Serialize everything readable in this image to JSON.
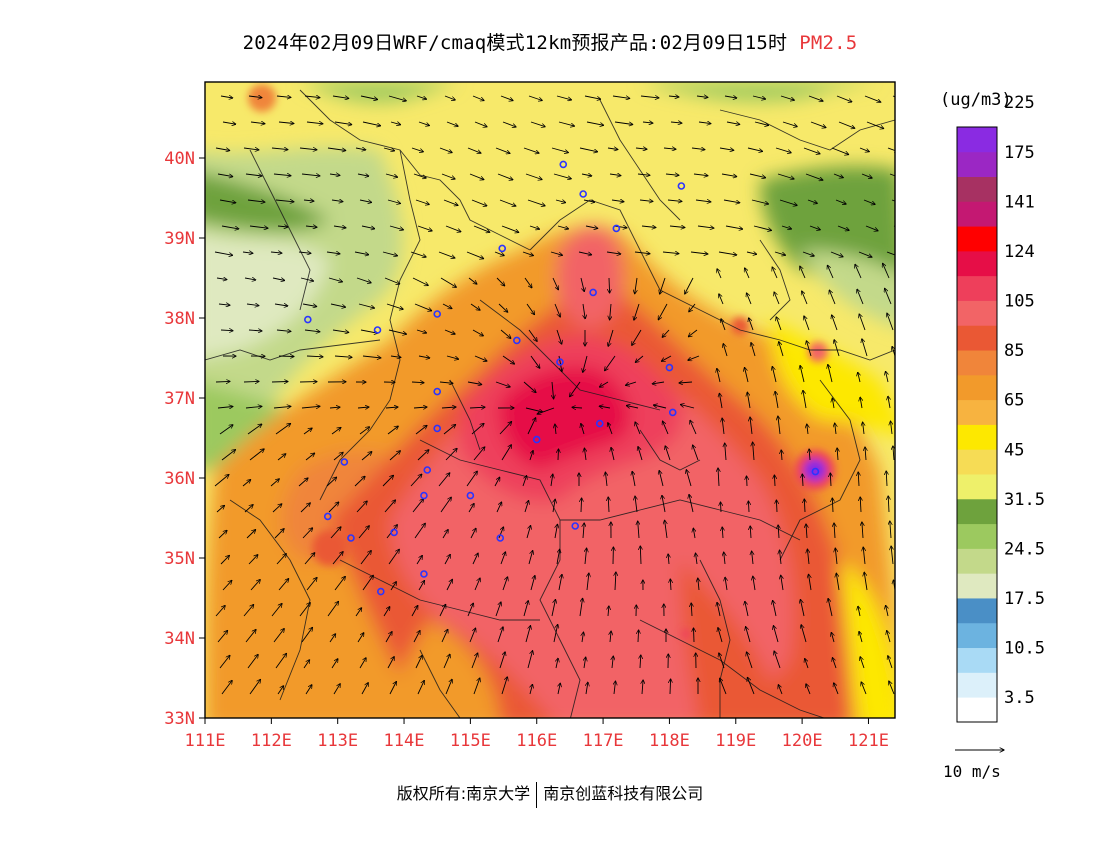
{
  "header": {
    "title": "2024年02月09日WRF/cmaq模式12km预报产品:02月09日15时",
    "variable": "PM2.5"
  },
  "map": {
    "lon_range": [
      111,
      121.4
    ],
    "lat_range": [
      33,
      40.95
    ],
    "lat_ticks": [
      "33N",
      "34N",
      "35N",
      "36N",
      "37N",
      "38N",
      "39N",
      "40N"
    ],
    "lon_ticks": [
      "111E",
      "112E",
      "113E",
      "114E",
      "115E",
      "116E",
      "117E",
      "118E",
      "119E",
      "120E",
      "121E"
    ],
    "pollution_core": {
      "lon": 116.0,
      "lat": 36.8
    },
    "hotspot": {
      "lon": 120.2,
      "lat": 36.1
    }
  },
  "legend": {
    "unit": "(ug/m3)",
    "labels": [
      "3.5",
      "10.5",
      "17.5",
      "24.5",
      "31.5",
      "45",
      "65",
      "85",
      "105",
      "124",
      "141",
      "175",
      "225"
    ],
    "colors": [
      "#ffffff",
      "#dcf0fa",
      "#a9daf5",
      "#6cb3e0",
      "#4a8fc6",
      "#dfe9c0",
      "#c3d98a",
      "#9cc95f",
      "#6ea23d",
      "#eef06a",
      "#f6dc55",
      "#fde800",
      "#f7b340",
      "#f29a2b",
      "#f0853a",
      "#ea5834",
      "#f26466",
      "#ee3f5b",
      "#e60e47",
      "#ff0000",
      "#c41872",
      "#a73162",
      "#9b27c4",
      "#8a2be2"
    ],
    "wind_scale": "10 m/s"
  },
  "stations": [
    {
      "lon": 116.4,
      "lat": 39.92
    },
    {
      "lon": 116.7,
      "lat": 39.55
    },
    {
      "lon": 117.2,
      "lat": 39.12
    },
    {
      "lon": 118.18,
      "lat": 39.65
    },
    {
      "lon": 115.48,
      "lat": 38.87
    },
    {
      "lon": 116.85,
      "lat": 38.32
    },
    {
      "lon": 114.5,
      "lat": 38.05
    },
    {
      "lon": 113.6,
      "lat": 37.85
    },
    {
      "lon": 112.55,
      "lat": 37.98
    },
    {
      "lon": 115.7,
      "lat": 37.72
    },
    {
      "lon": 116.35,
      "lat": 37.45
    },
    {
      "lon": 118.0,
      "lat": 37.38
    },
    {
      "lon": 114.5,
      "lat": 37.08
    },
    {
      "lon": 118.05,
      "lat": 36.82
    },
    {
      "lon": 116.95,
      "lat": 36.68
    },
    {
      "lon": 114.5,
      "lat": 36.62
    },
    {
      "lon": 116.0,
      "lat": 36.48
    },
    {
      "lon": 113.1,
      "lat": 36.2
    },
    {
      "lon": 114.35,
      "lat": 36.1
    },
    {
      "lon": 114.3,
      "lat": 35.78
    },
    {
      "lon": 115.0,
      "lat": 35.78
    },
    {
      "lon": 112.85,
      "lat": 35.52
    },
    {
      "lon": 116.58,
      "lat": 35.4
    },
    {
      "lon": 113.85,
      "lat": 35.32
    },
    {
      "lon": 115.45,
      "lat": 35.25
    },
    {
      "lon": 113.2,
      "lat": 35.25
    },
    {
      "lon": 114.3,
      "lat": 34.8
    },
    {
      "lon": 113.65,
      "lat": 34.58
    },
    {
      "lon": 120.2,
      "lat": 36.08
    }
  ],
  "copyright": {
    "left": "版权所有:南京大学",
    "right": "南京创蓝科技有限公司"
  }
}
